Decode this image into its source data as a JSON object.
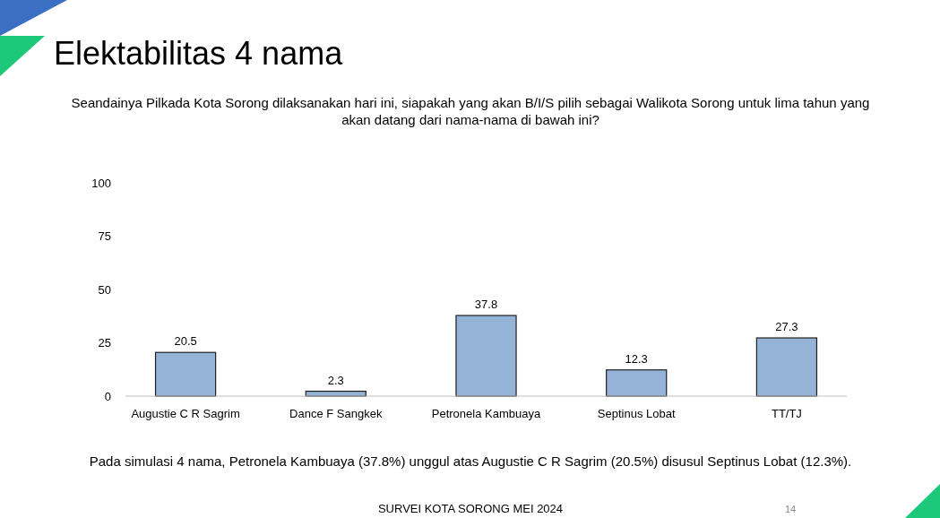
{
  "chart_data": {
    "type": "bar",
    "title": "Elektabilitas 4 nama",
    "subtitle": "Seandainya Pilkada Kota Sorong dilaksanakan hari ini, siapakah yang akan B/I/S pilih sebagai Walikota Sorong untuk lima tahun yang akan datang dari nama-nama di bawah ini?",
    "categories": [
      "Augustie C R Sagrim",
      "Dance F Sangkek",
      "Petronela Kambuaya",
      "Septinus Lobat",
      "TT/TJ"
    ],
    "values": [
      20.5,
      2.3,
      37.8,
      12.3,
      27.3
    ],
    "color": "#95b3d7",
    "ylim": [
      0,
      100
    ],
    "yticks": [
      0,
      25,
      50,
      75,
      100
    ],
    "grid": false,
    "data_labels": true,
    "annotations": [
      "Pada simulasi 4 nama, Petronela Kambuaya (37.8%) unggul atas Augustie C R Sagrim (20.5%) disusul Septinus Lobat (12.3%).",
      "SURVEI KOTA SORONG MEI 2024",
      "14"
    ]
  }
}
